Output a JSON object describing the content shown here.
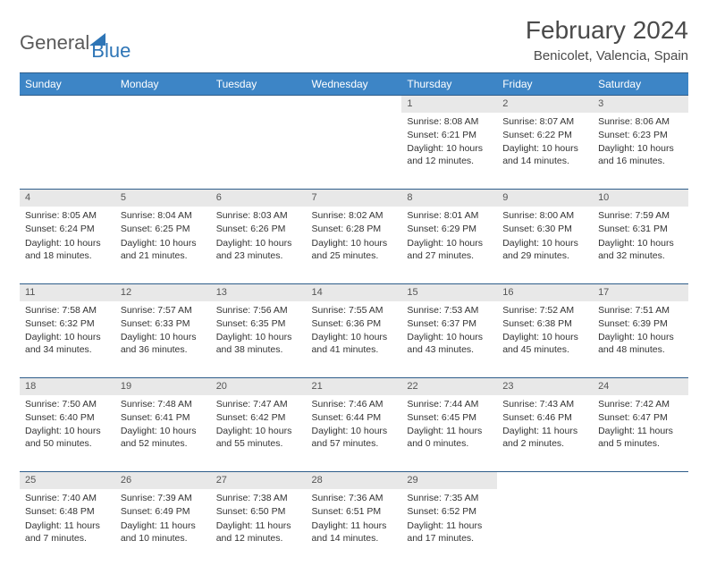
{
  "logo": {
    "text1": "General",
    "text2": "Blue"
  },
  "title": "February 2024",
  "subtitle": "Benicolet, Valencia, Spain",
  "colors": {
    "header_bg": "#3d85c6",
    "header_border": "#2e5d8a",
    "daynum_bg": "#e8e8e8",
    "text": "#333333"
  },
  "day_labels": [
    "Sunday",
    "Monday",
    "Tuesday",
    "Wednesday",
    "Thursday",
    "Friday",
    "Saturday"
  ],
  "weeks": [
    {
      "nums": [
        "",
        "",
        "",
        "",
        "1",
        "2",
        "3"
      ],
      "cells": [
        null,
        null,
        null,
        null,
        {
          "sunrise": "8:08 AM",
          "sunset": "6:21 PM",
          "daylight": "10 hours and 12 minutes."
        },
        {
          "sunrise": "8:07 AM",
          "sunset": "6:22 PM",
          "daylight": "10 hours and 14 minutes."
        },
        {
          "sunrise": "8:06 AM",
          "sunset": "6:23 PM",
          "daylight": "10 hours and 16 minutes."
        }
      ]
    },
    {
      "nums": [
        "4",
        "5",
        "6",
        "7",
        "8",
        "9",
        "10"
      ],
      "cells": [
        {
          "sunrise": "8:05 AM",
          "sunset": "6:24 PM",
          "daylight": "10 hours and 18 minutes."
        },
        {
          "sunrise": "8:04 AM",
          "sunset": "6:25 PM",
          "daylight": "10 hours and 21 minutes."
        },
        {
          "sunrise": "8:03 AM",
          "sunset": "6:26 PM",
          "daylight": "10 hours and 23 minutes."
        },
        {
          "sunrise": "8:02 AM",
          "sunset": "6:28 PM",
          "daylight": "10 hours and 25 minutes."
        },
        {
          "sunrise": "8:01 AM",
          "sunset": "6:29 PM",
          "daylight": "10 hours and 27 minutes."
        },
        {
          "sunrise": "8:00 AM",
          "sunset": "6:30 PM",
          "daylight": "10 hours and 29 minutes."
        },
        {
          "sunrise": "7:59 AM",
          "sunset": "6:31 PM",
          "daylight": "10 hours and 32 minutes."
        }
      ]
    },
    {
      "nums": [
        "11",
        "12",
        "13",
        "14",
        "15",
        "16",
        "17"
      ],
      "cells": [
        {
          "sunrise": "7:58 AM",
          "sunset": "6:32 PM",
          "daylight": "10 hours and 34 minutes."
        },
        {
          "sunrise": "7:57 AM",
          "sunset": "6:33 PM",
          "daylight": "10 hours and 36 minutes."
        },
        {
          "sunrise": "7:56 AM",
          "sunset": "6:35 PM",
          "daylight": "10 hours and 38 minutes."
        },
        {
          "sunrise": "7:55 AM",
          "sunset": "6:36 PM",
          "daylight": "10 hours and 41 minutes."
        },
        {
          "sunrise": "7:53 AM",
          "sunset": "6:37 PM",
          "daylight": "10 hours and 43 minutes."
        },
        {
          "sunrise": "7:52 AM",
          "sunset": "6:38 PM",
          "daylight": "10 hours and 45 minutes."
        },
        {
          "sunrise": "7:51 AM",
          "sunset": "6:39 PM",
          "daylight": "10 hours and 48 minutes."
        }
      ]
    },
    {
      "nums": [
        "18",
        "19",
        "20",
        "21",
        "22",
        "23",
        "24"
      ],
      "cells": [
        {
          "sunrise": "7:50 AM",
          "sunset": "6:40 PM",
          "daylight": "10 hours and 50 minutes."
        },
        {
          "sunrise": "7:48 AM",
          "sunset": "6:41 PM",
          "daylight": "10 hours and 52 minutes."
        },
        {
          "sunrise": "7:47 AM",
          "sunset": "6:42 PM",
          "daylight": "10 hours and 55 minutes."
        },
        {
          "sunrise": "7:46 AM",
          "sunset": "6:44 PM",
          "daylight": "10 hours and 57 minutes."
        },
        {
          "sunrise": "7:44 AM",
          "sunset": "6:45 PM",
          "daylight": "11 hours and 0 minutes."
        },
        {
          "sunrise": "7:43 AM",
          "sunset": "6:46 PM",
          "daylight": "11 hours and 2 minutes."
        },
        {
          "sunrise": "7:42 AM",
          "sunset": "6:47 PM",
          "daylight": "11 hours and 5 minutes."
        }
      ]
    },
    {
      "nums": [
        "25",
        "26",
        "27",
        "28",
        "29",
        "",
        ""
      ],
      "cells": [
        {
          "sunrise": "7:40 AM",
          "sunset": "6:48 PM",
          "daylight": "11 hours and 7 minutes."
        },
        {
          "sunrise": "7:39 AM",
          "sunset": "6:49 PM",
          "daylight": "11 hours and 10 minutes."
        },
        {
          "sunrise": "7:38 AM",
          "sunset": "6:50 PM",
          "daylight": "11 hours and 12 minutes."
        },
        {
          "sunrise": "7:36 AM",
          "sunset": "6:51 PM",
          "daylight": "11 hours and 14 minutes."
        },
        {
          "sunrise": "7:35 AM",
          "sunset": "6:52 PM",
          "daylight": "11 hours and 17 minutes."
        },
        null,
        null
      ]
    }
  ],
  "labels": {
    "sunrise": "Sunrise: ",
    "sunset": "Sunset: ",
    "daylight": "Daylight: "
  }
}
